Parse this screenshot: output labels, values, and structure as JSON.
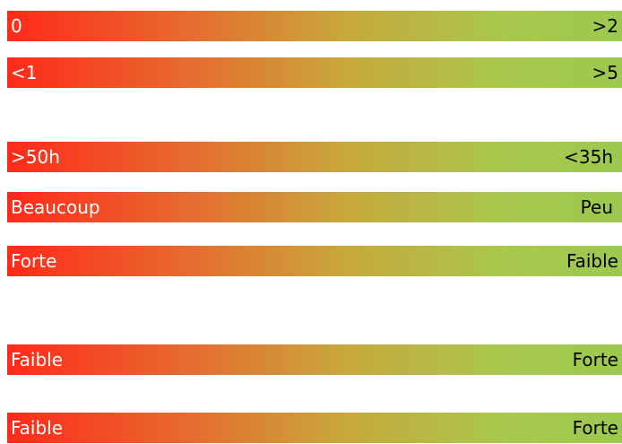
{
  "colors": {
    "gradient_start": "#ff2a1a",
    "gradient_end": "#9cc94f",
    "left_text": "#ffffff",
    "right_text": "#000000"
  },
  "bars": [
    {
      "left": "0",
      "right": ">2"
    },
    {
      "left": "<1",
      "right": ">5"
    },
    {
      "left": ">50h",
      "right": "<35h"
    },
    {
      "left": "Beaucoup",
      "right": "Peu"
    },
    {
      "left": "Forte",
      "right": "Faible"
    },
    {
      "left": "Faible",
      "right": "Forte"
    },
    {
      "left": "Faible",
      "right": "Forte"
    }
  ]
}
